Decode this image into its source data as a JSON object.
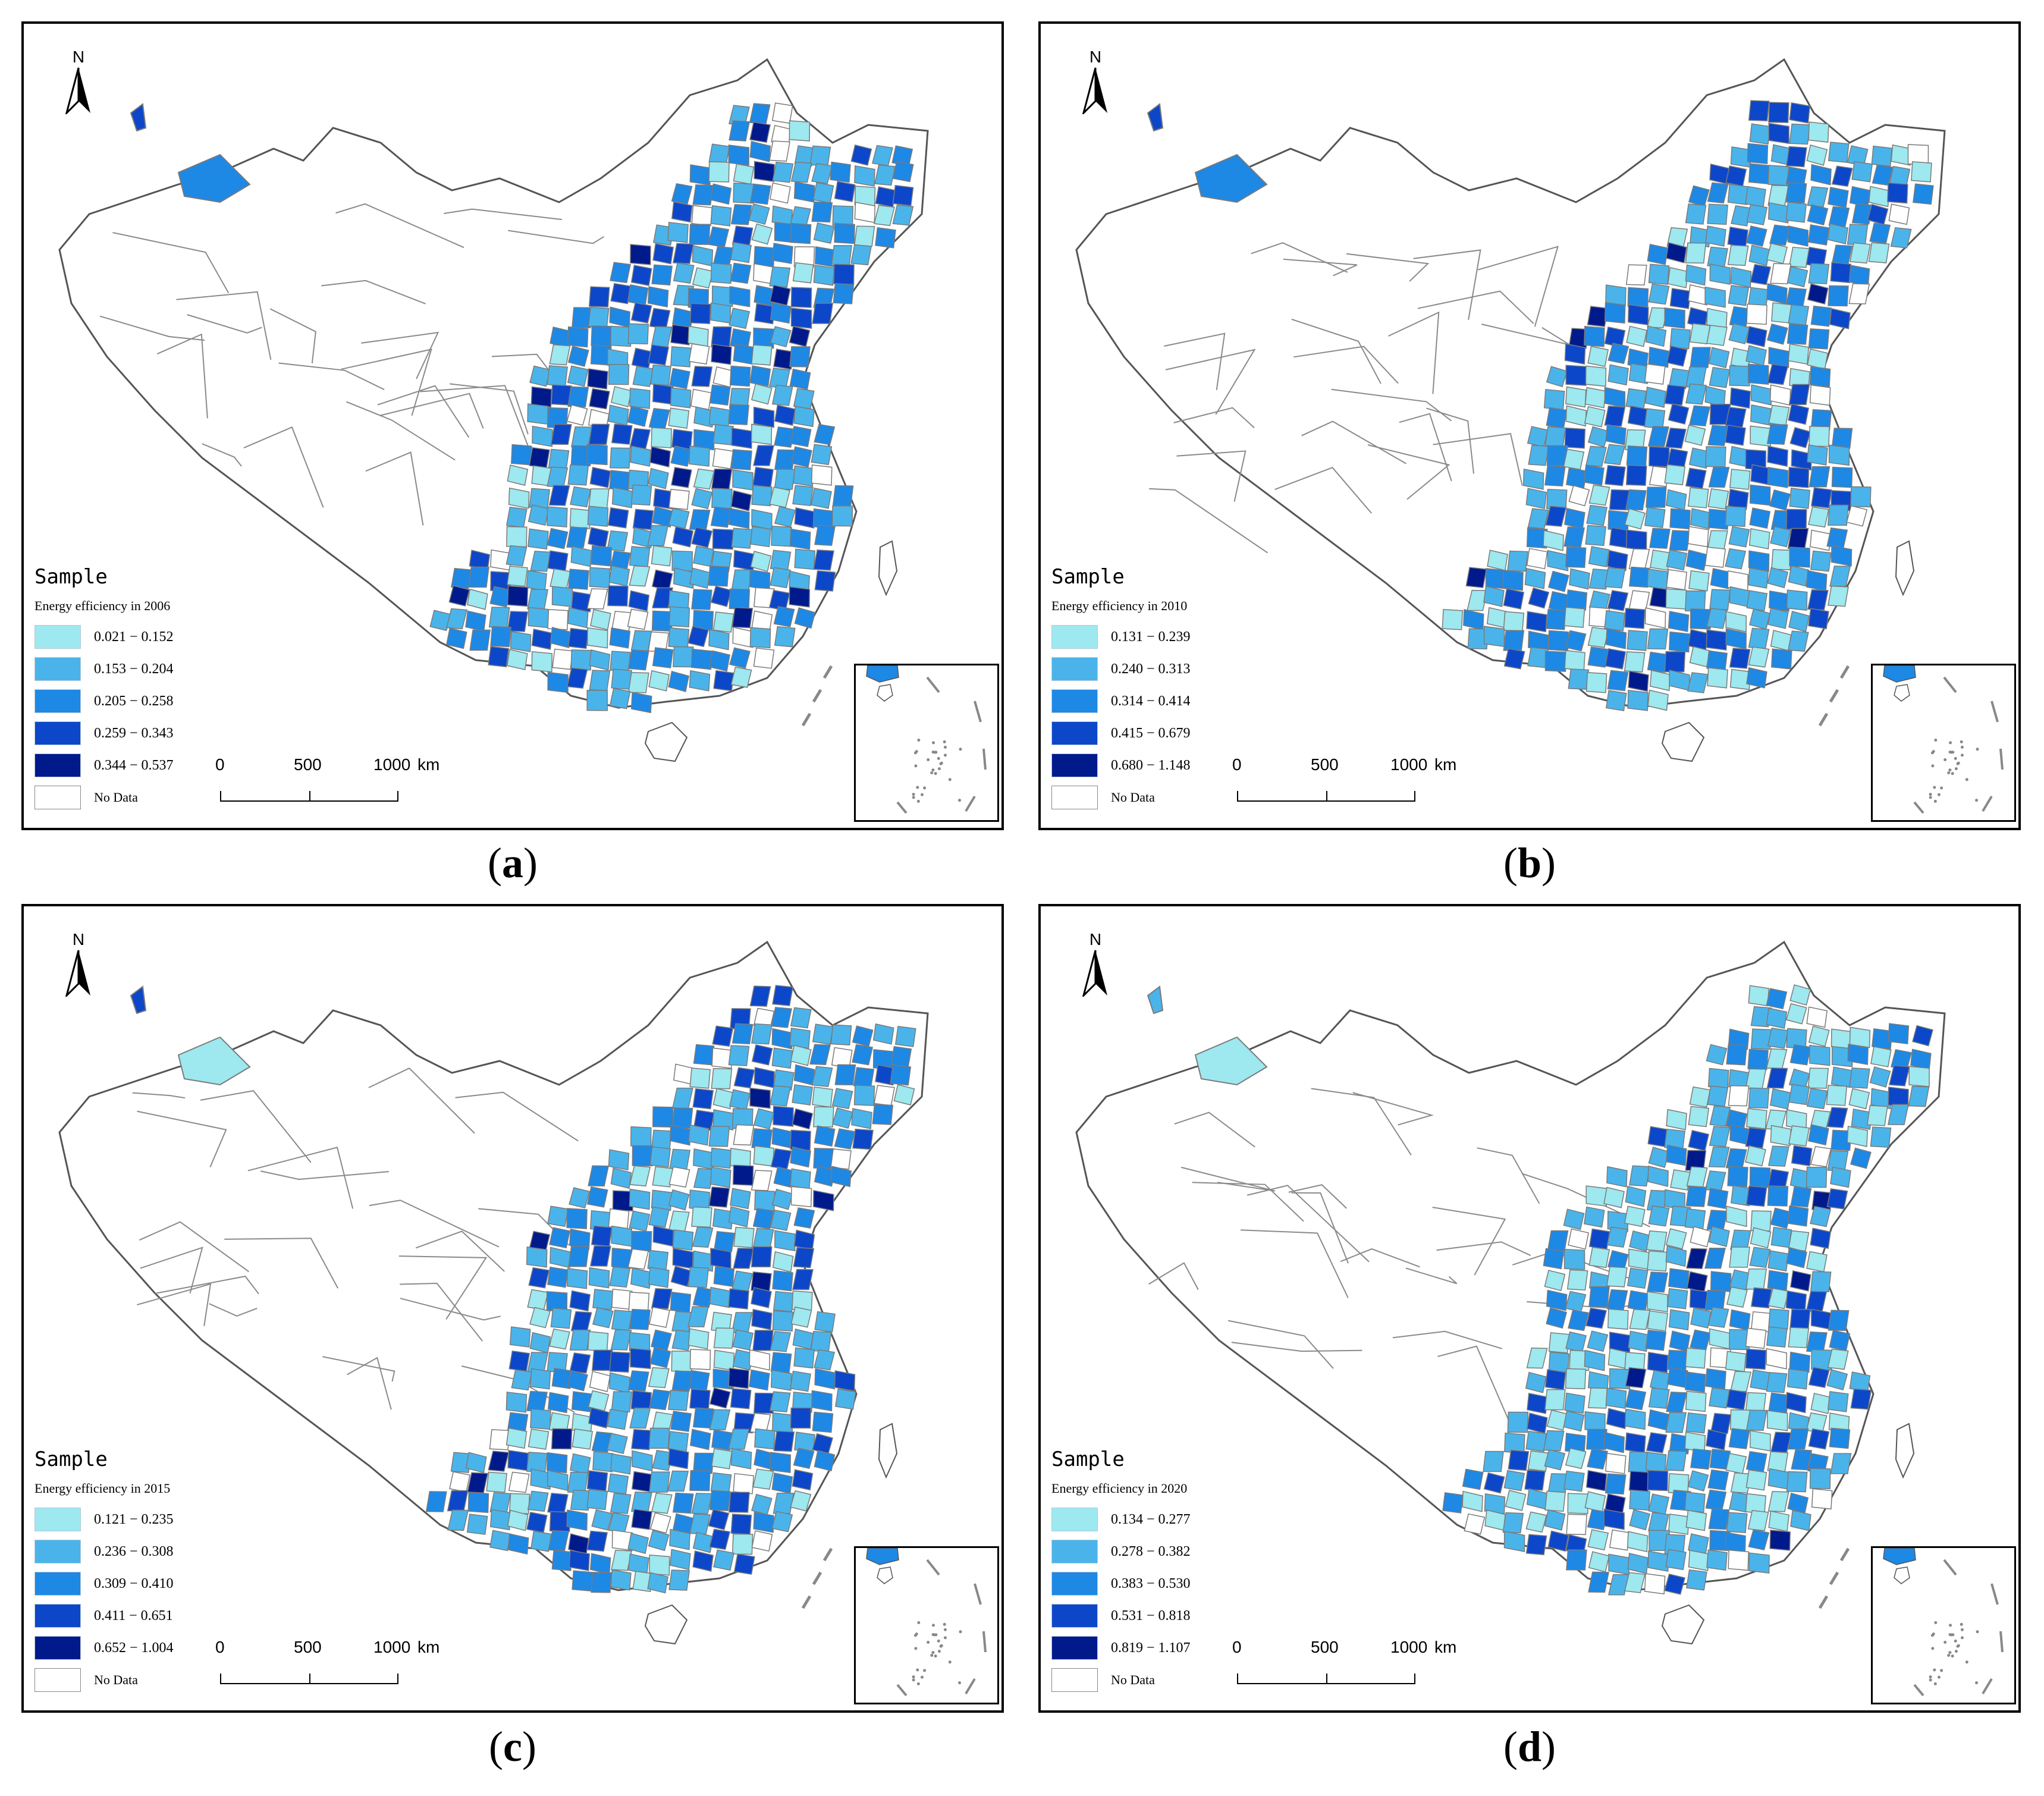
{
  "north_label": "N",
  "legend_title": "Sample",
  "no_data_label": "No Data",
  "scale_bar": {
    "ticks": [
      "0",
      "500",
      "1000"
    ],
    "unit": "km"
  },
  "colors": {
    "class1": "#9ee8ef",
    "class2": "#4ab4ea",
    "class3": "#1e88e5",
    "class4": "#0d47c9",
    "class5": "#001a8c",
    "no_data": "#ffffff",
    "boundary": "#7a7a7a"
  },
  "panels": [
    {
      "caption_letter": "a",
      "legend_subtitle": "Energy efficiency in 2006",
      "classes": [
        "0.021 − 0.152",
        "0.153 − 0.204",
        "0.205 − 0.258",
        "0.259 − 0.343",
        "0.344 − 0.537"
      ]
    },
    {
      "caption_letter": "b",
      "legend_subtitle": "Energy efficiency in 2010",
      "classes": [
        "0.131 − 0.239",
        "0.240 − 0.313",
        "0.314 − 0.414",
        "0.415 − 0.679",
        "0.680 − 1.148"
      ]
    },
    {
      "caption_letter": "c",
      "legend_subtitle": "Energy efficiency in 2015",
      "classes": [
        "0.121 − 0.235",
        "0.236 − 0.308",
        "0.309 − 0.410",
        "0.411 − 0.651",
        "0.652 − 1.004"
      ]
    },
    {
      "caption_letter": "d",
      "legend_subtitle": "Energy efficiency in 2020",
      "classes": [
        "0.134 − 0.277",
        "0.278 − 0.382",
        "0.383 − 0.530",
        "0.531 − 0.818",
        "0.819 − 1.107"
      ]
    }
  ]
}
